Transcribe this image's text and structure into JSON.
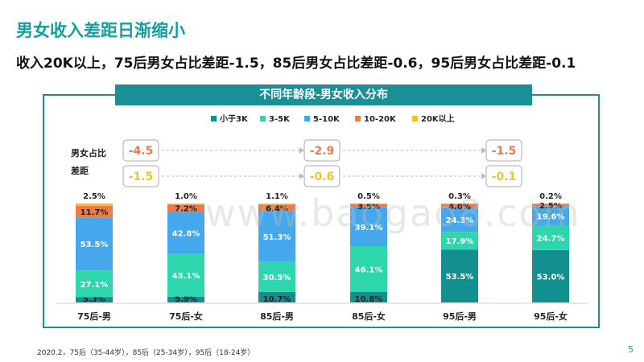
{
  "title": "男女收入差距日渐缩小",
  "subtitle": "收入20K以上，75后男女占比差距-1.5，85后男女占比差距-0.6，95后男女占比差距-0.1",
  "footnote": "2020.2，75后（35-44岁），85后（25-34岁），95后（18-24岁）",
  "page_number": "5",
  "watermark": "www.baogao8.com",
  "gap_label_line1": "男女占比",
  "gap_label_line2": "差距",
  "colors": {
    "series": [
      "#138f8f",
      "#2ed6ae",
      "#45a8ec",
      "#ee7b47",
      "#f3c22a"
    ],
    "teal": "#1a8f96"
  },
  "chart_data": {
    "type": "bar",
    "stacked": true,
    "title": "不同年龄段-男女收入分布",
    "categories": [
      "75后-男",
      "75后-女",
      "85后-男",
      "85后-女",
      "95后-男",
      "95后-女"
    ],
    "series": [
      {
        "name": "小于3K",
        "values": [
          5.3,
          5.9,
          10.7,
          10.8,
          53.5,
          53.0
        ],
        "labels": [
          "5.3%",
          "5.9%",
          "10.7%",
          "10.8%",
          "53.5%",
          "53.0%"
        ]
      },
      {
        "name": "3-5K",
        "values": [
          27.1,
          43.1,
          30.5,
          46.1,
          17.9,
          24.7
        ],
        "labels": [
          "27.1%",
          "43.1%",
          "30.5%",
          "46.1%",
          "17.9%",
          "24.7%"
        ]
      },
      {
        "name": "5-10K",
        "values": [
          53.5,
          42.8,
          51.3,
          39.1,
          24.3,
          19.6
        ],
        "labels": [
          "53.5%",
          "42.8%",
          "51.3%",
          "39.1%",
          "24.3%",
          "19.6%"
        ]
      },
      {
        "name": "10-20K",
        "values": [
          11.7,
          7.2,
          6.4,
          3.5,
          4.0,
          2.5
        ],
        "labels": [
          "11.7%",
          "7.2%",
          "6.4%",
          "3.5%",
          "4.0%",
          "2.5%"
        ]
      },
      {
        "name": "20K以上",
        "values": [
          2.5,
          1.0,
          1.1,
          0.5,
          0.3,
          0.2
        ],
        "labels": [
          "2.5%",
          "1.0%",
          "1.1%",
          "0.5%",
          "0.3%",
          "0.2%"
        ]
      }
    ],
    "ylim": [
      0,
      100
    ],
    "legend": "top",
    "gaps": [
      {
        "group": "75后",
        "top": "-4.5",
        "bottom": "-1.5"
      },
      {
        "group": "85后",
        "top": "-2.9",
        "bottom": "-0.6"
      },
      {
        "group": "95后",
        "top": "-1.5",
        "bottom": "-0.1"
      }
    ]
  }
}
